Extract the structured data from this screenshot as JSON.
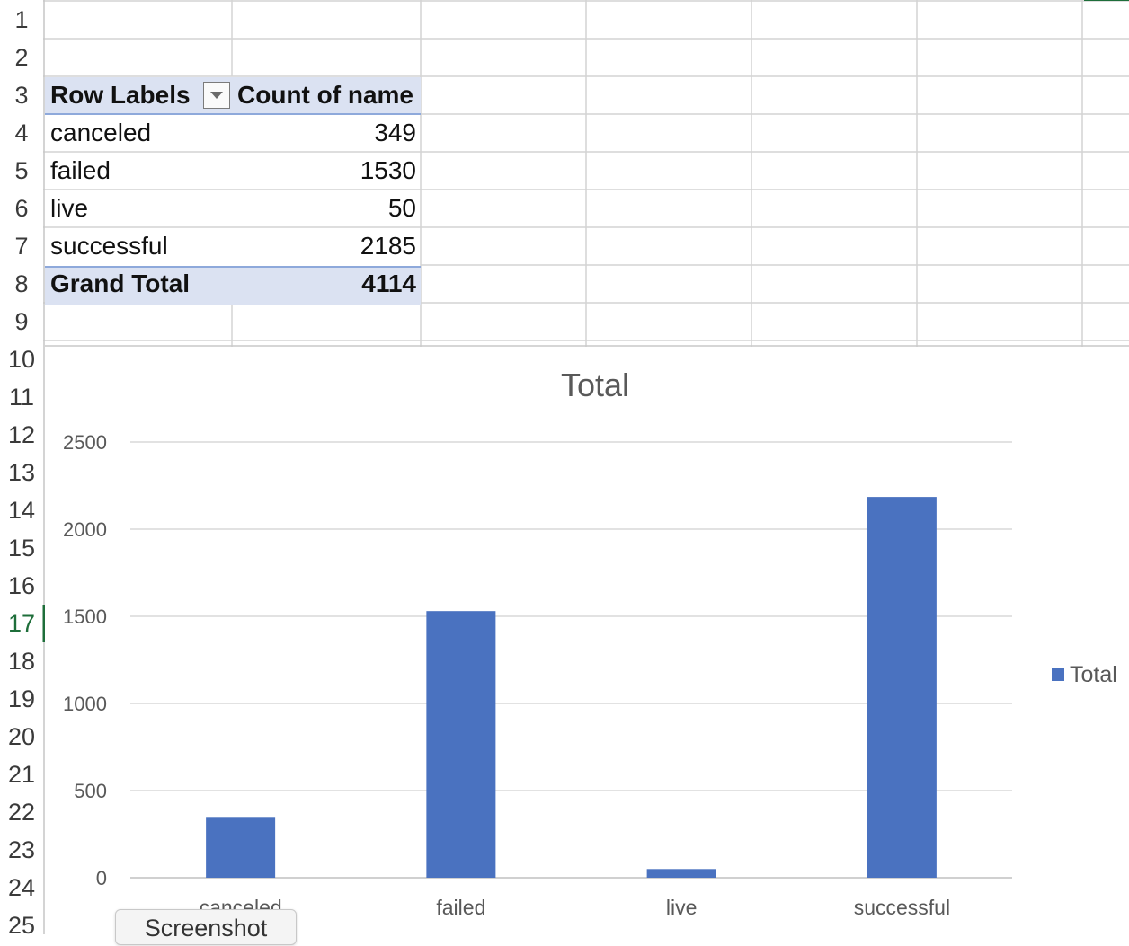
{
  "rows": [
    "1",
    "2",
    "3",
    "4",
    "5",
    "6",
    "7",
    "8",
    "9",
    "10",
    "11",
    "12",
    "13",
    "14",
    "15",
    "16",
    "17",
    "18",
    "19",
    "20",
    "21",
    "22",
    "23",
    "24",
    "25"
  ],
  "active_row": "17",
  "pivot": {
    "header_label": "Row Labels",
    "header_value": "Count of name",
    "items": [
      {
        "label": "canceled",
        "value": "349"
      },
      {
        "label": "failed",
        "value": "1530"
      },
      {
        "label": "live",
        "value": "50"
      },
      {
        "label": "successful",
        "value": "2185"
      }
    ],
    "total_label": "Grand Total",
    "total_value": "4114"
  },
  "chart_data": {
    "type": "bar",
    "title": "Total",
    "categories": [
      "canceled",
      "failed",
      "live",
      "successful"
    ],
    "series": [
      {
        "name": "Total",
        "values": [
          349,
          1530,
          50,
          2185
        ]
      }
    ],
    "yticks": [
      "0",
      "500",
      "1000",
      "1500",
      "2000",
      "2500"
    ],
    "ylim": [
      0,
      2500
    ],
    "grid": true,
    "legend": "right",
    "bar_color": "#4a72c0"
  },
  "overlay_tab": "Screenshot"
}
